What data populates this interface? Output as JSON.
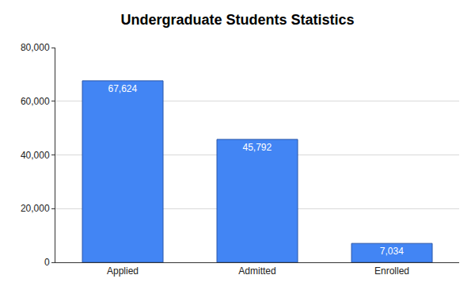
{
  "chart_data": {
    "type": "bar",
    "title": "Undergraduate Students Statistics",
    "categories": [
      "Applied",
      "Admitted",
      "Enrolled"
    ],
    "values": [
      67624,
      45792,
      7034
    ],
    "value_labels": [
      "67,624",
      "45,792",
      "7,034"
    ],
    "data_labels": true,
    "color": "#4285f4",
    "ylim": [
      0,
      80000
    ],
    "yticks": [
      0,
      {
        "value": 20000,
        "label": "20,000"
      },
      {
        "value": 40000,
        "label": "40,000"
      },
      {
        "value": 60000,
        "label": "60,000"
      },
      {
        "value": 80000,
        "label": "80,000"
      }
    ],
    "grid": true
  }
}
